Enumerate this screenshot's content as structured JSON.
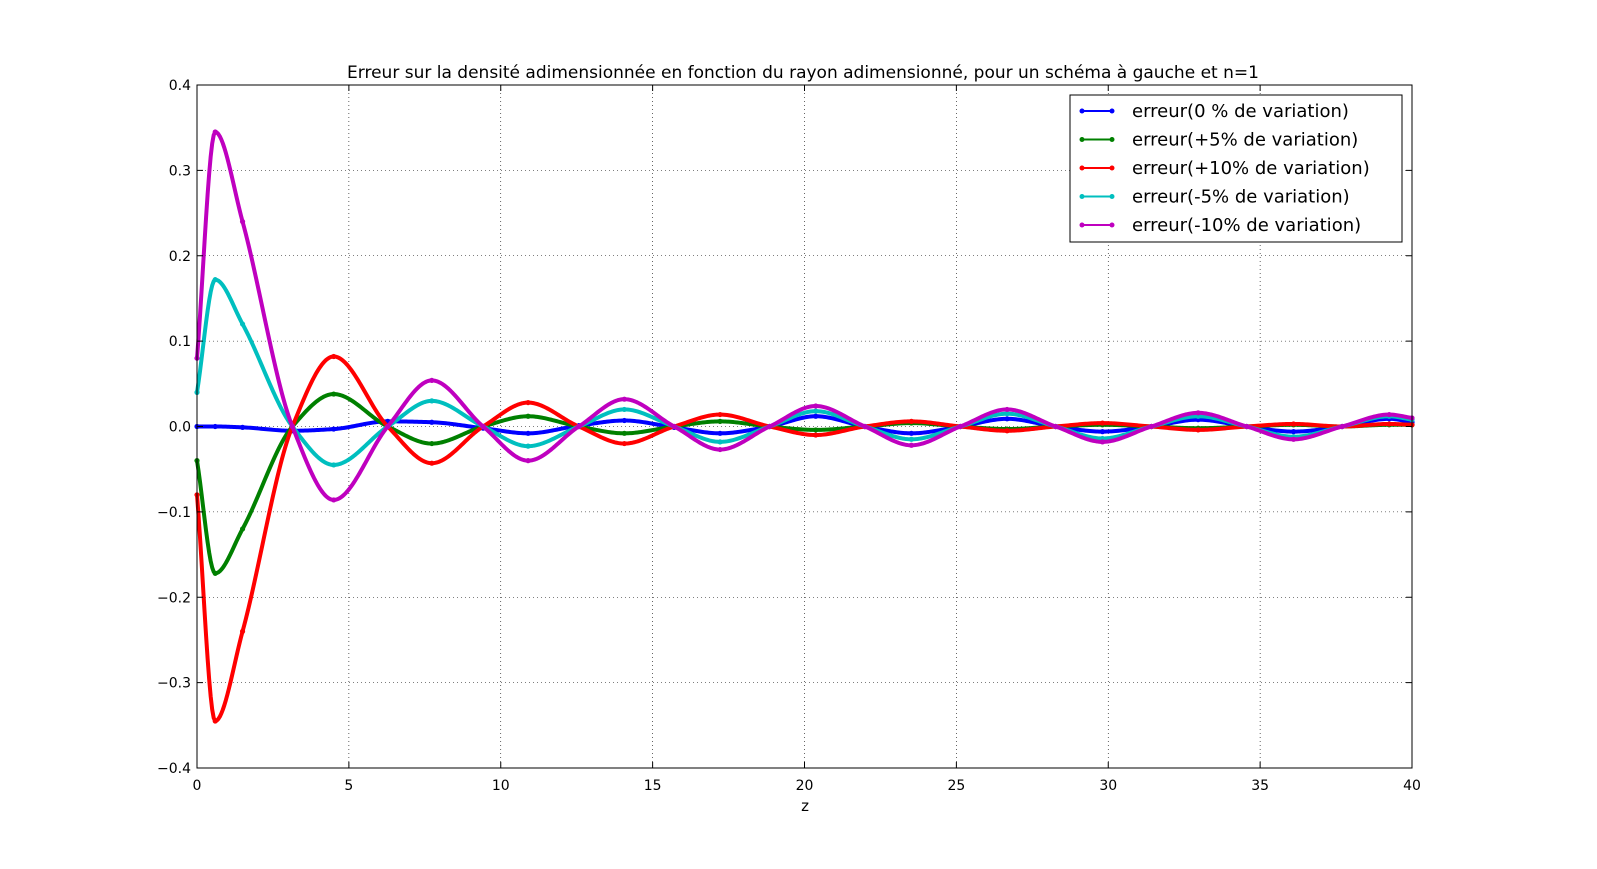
{
  "chart_data": {
    "type": "line",
    "title": "Erreur sur la densité adimensionnée en fonction du rayon adimensionné, pour un schéma à gauche et n=1",
    "xlabel": "z",
    "ylabel": "",
    "xlim": [
      0,
      40
    ],
    "ylim": [
      -0.4,
      0.4
    ],
    "xticks": [
      0,
      5,
      10,
      15,
      20,
      25,
      30,
      35,
      40
    ],
    "xtick_labels": [
      "0",
      "5",
      "10",
      "15",
      "20",
      "25",
      "30",
      "35",
      "40"
    ],
    "yticks": [
      -0.4,
      -0.3,
      -0.2,
      -0.1,
      0.0,
      0.1,
      0.2,
      0.3,
      0.4
    ],
    "ytick_labels": [
      "−0.4",
      "−0.3",
      "−0.2",
      "−0.1",
      "0.0",
      "0.1",
      "0.2",
      "0.3",
      "0.4"
    ],
    "grid": true,
    "legend_position": "top-right",
    "x": [
      0,
      0.6,
      1.5,
      3.14,
      4.5,
      6.28,
      7.73,
      9.42,
      10.9,
      12.57,
      14.07,
      15.71,
      17.22,
      18.85,
      20.37,
      21.99,
      23.52,
      25.13,
      26.67,
      28.27,
      29.81,
      31.42,
      32.96,
      34.56,
      36.1,
      37.7,
      39.25,
      40
    ],
    "series": [
      {
        "name": "erreur(0 % de variation)",
        "color": "#0000ff",
        "values": [
          0.0,
          0.0,
          -0.001,
          -0.005,
          -0.003,
          0.006,
          0.005,
          -0.002,
          -0.008,
          0.001,
          0.007,
          -0.001,
          -0.008,
          0.0,
          0.012,
          0.0,
          -0.008,
          0.0,
          0.009,
          0.0,
          -0.006,
          0.0,
          0.008,
          0.0,
          -0.006,
          0.0,
          0.009,
          0.005
        ]
      },
      {
        "name": "erreur(+5% de variation)",
        "color": "#008000",
        "values": [
          -0.04,
          -0.172,
          -0.12,
          0.0,
          0.038,
          0.0,
          -0.02,
          0.0,
          0.012,
          0.0,
          -0.008,
          0.0,
          0.006,
          0.0,
          -0.004,
          0.0,
          0.004,
          0.0,
          -0.003,
          0.0,
          0.002,
          0.0,
          -0.002,
          0.0,
          0.002,
          0.0,
          0.002,
          0.002
        ]
      },
      {
        "name": "erreur(+10% de variation)",
        "color": "#ff0000",
        "values": [
          -0.08,
          -0.345,
          -0.24,
          0.0,
          0.082,
          0.0,
          -0.043,
          0.0,
          0.028,
          0.0,
          -0.02,
          0.0,
          0.014,
          0.0,
          -0.01,
          0.0,
          0.006,
          0.0,
          -0.005,
          0.0,
          0.004,
          0.0,
          -0.004,
          0.0,
          0.003,
          0.0,
          0.003,
          0.002
        ]
      },
      {
        "name": "erreur(-5% de variation)",
        "color": "#00bfbf",
        "values": [
          0.04,
          0.172,
          0.12,
          0.0,
          -0.045,
          0.0,
          0.03,
          0.0,
          -0.023,
          0.0,
          0.02,
          0.0,
          -0.018,
          0.0,
          0.018,
          0.0,
          -0.015,
          0.0,
          0.015,
          0.0,
          -0.014,
          0.0,
          0.012,
          0.0,
          -0.012,
          0.0,
          0.012,
          0.008
        ]
      },
      {
        "name": "erreur(-10% de variation)",
        "color": "#bf00bf",
        "values": [
          0.08,
          0.345,
          0.24,
          0.0,
          -0.086,
          0.0,
          0.054,
          0.0,
          -0.04,
          0.0,
          0.032,
          0.0,
          -0.027,
          0.0,
          0.024,
          0.0,
          -0.022,
          0.0,
          0.02,
          0.0,
          -0.018,
          0.0,
          0.016,
          0.0,
          -0.015,
          0.0,
          0.014,
          0.01
        ]
      }
    ]
  }
}
